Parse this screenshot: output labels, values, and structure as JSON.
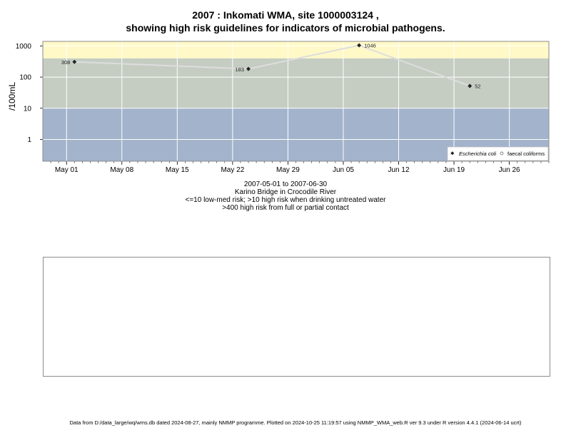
{
  "title_line1": "2007 : Inkomati WMA, site 1000003124 ,",
  "title_line2": "showing high risk guidelines for indicators of microbial pathogens.",
  "ylabel": "/100mL",
  "subtitle_lines": [
    "2007-05-01 to 2007-06-30",
    "Karino Bridge in Crocodile River",
    "<=10 low-med risk; >10 high risk when drinking untreated water",
    ">400 high risk from full or partial contact"
  ],
  "footer": "Data from D:/data_large/wq/wms.db dated 2024-08-27, mainly NMMP programme. Plotted on 2024-10-25 11:19:57 using NMMP_WMA_web.R ver 9.3 under R version 4.4.1 (2024-06-14 ucrt)",
  "colors": {
    "band_low": "#a3b3cc",
    "band_mid": "#c5cdc3",
    "band_high": "#fff9c7",
    "line": "#dddddd",
    "marker": "#222222"
  },
  "chart_data": {
    "type": "line",
    "y_scale": "log10",
    "ylim": [
      0.2,
      1400
    ],
    "xlim": [
      "2007-04-28",
      "2007-07-01"
    ],
    "x_ticks": [
      "May 01",
      "May 08",
      "May 15",
      "May 22",
      "May 29",
      "Jun 05",
      "Jun 12",
      "Jun 19",
      "Jun 26"
    ],
    "x_tick_dates": [
      "2007-05-01",
      "2007-05-08",
      "2007-05-15",
      "2007-05-22",
      "2007-05-29",
      "2007-06-05",
      "2007-06-12",
      "2007-06-19",
      "2007-06-26"
    ],
    "y_ticks": [
      "1",
      "10",
      "100",
      "1000"
    ],
    "y_tick_values": [
      1,
      10,
      100,
      1000
    ],
    "bands": [
      {
        "from": 0.2,
        "to": 10
      },
      {
        "from": 10,
        "to": 400
      },
      {
        "from": 400,
        "to": 1400
      }
    ],
    "grid": true,
    "legend_position": "bottom-right",
    "series": [
      {
        "name": "Escherichia coli",
        "x": [
          "2007-05-02",
          "2007-05-24",
          "2007-06-07",
          "2007-06-21"
        ],
        "y": [
          308,
          183,
          1046,
          52
        ],
        "labels": [
          "308",
          "183",
          "1046",
          "52"
        ]
      }
    ],
    "legend": [
      "Escherichia coli",
      "faecal coliforms"
    ]
  }
}
